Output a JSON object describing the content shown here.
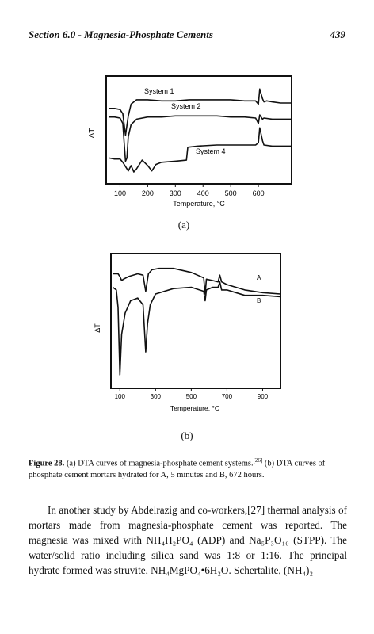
{
  "header": {
    "section": "Section 6.0 - Magnesia-Phosphate Cements",
    "page_number": "439"
  },
  "figures": {
    "a": {
      "sublabel": "(a)",
      "ylabel": "ΔT",
      "xlabel": "Temperature, °C",
      "xticks": [
        "100",
        "200",
        "300",
        "400",
        "500",
        "600"
      ],
      "series_labels": [
        "System 1",
        "System 2",
        "System 4"
      ]
    },
    "b": {
      "sublabel": "(b)",
      "ylabel": "ΔT",
      "xlabel": "Temperature, °C",
      "xticks": [
        "100",
        "300",
        "500",
        "700",
        "900"
      ],
      "series_labels": [
        "A",
        "B"
      ]
    }
  },
  "caption": {
    "label": "Figure 28.",
    "text_1": "(a) DTA curves of magnesia-phosphate cement systems.",
    "ref_1": "[26]",
    "text_2": "(b) DTA curves of phosphate cement mortars hydrated for A, 5 minutes and B, 672 hours."
  },
  "body": {
    "paragraph": "In another study by Abdelrazig and co-workers,[27] thermal analysis of mortars made from magnesia-phosphate cement was reported. The magnesia was mixed with NH₄H₂PO₄ (ADP) and Na₅P₃O₁₀ (STPP). The water/solid ratio including silica sand was 1:8 or 1:16. The principal hydrate formed was struvite, NH₄MgPO₄•6H₂O. Schertalite, (NH₄)₂"
  },
  "chart_data": [
    {
      "type": "line",
      "title": "",
      "xlabel": "Temperature, °C",
      "ylabel": "ΔT",
      "xlim": [
        50,
        720
      ],
      "grid": false,
      "series": [
        {
          "name": "System 1",
          "x": [
            60,
            80,
            100,
            110,
            120,
            130,
            140,
            160,
            200,
            250,
            300,
            350,
            400,
            450,
            500,
            550,
            590,
            600,
            605,
            615,
            620,
            630,
            650,
            680,
            720
          ],
          "y": [
            7.0,
            7.0,
            6.9,
            6.5,
            4.5,
            6.3,
            7.4,
            7.8,
            7.8,
            7.7,
            7.7,
            7.8,
            7.8,
            7.8,
            7.8,
            7.7,
            7.7,
            7.4,
            8.8,
            7.9,
            7.6,
            7.7,
            7.6,
            7.5,
            7.5
          ]
        },
        {
          "name": "System 2",
          "x": [
            60,
            80,
            100,
            110,
            115,
            120,
            125,
            130,
            140,
            160,
            200,
            250,
            300,
            350,
            400,
            450,
            500,
            550,
            590,
            600,
            605,
            615,
            620,
            650,
            720
          ],
          "y": [
            6.2,
            6.2,
            6.1,
            5.6,
            3.8,
            2.1,
            2.4,
            4.4,
            5.5,
            6.0,
            6.2,
            6.2,
            6.3,
            6.3,
            6.3,
            6.3,
            6.2,
            6.2,
            6.1,
            5.6,
            6.4,
            6.0,
            6.1,
            6.0,
            6.0
          ]
        },
        {
          "name": "System 4",
          "x": [
            60,
            80,
            100,
            110,
            120,
            130,
            140,
            150,
            160,
            180,
            200,
            215,
            230,
            250,
            300,
            340,
            345,
            380,
            450,
            500,
            550,
            590,
            600,
            605,
            615,
            620,
            650,
            720
          ],
          "y": [
            2.4,
            2.3,
            2.3,
            2.0,
            1.6,
            1.2,
            1.7,
            1.1,
            1.4,
            2.2,
            1.7,
            1.2,
            1.8,
            2.0,
            2.1,
            2.2,
            3.4,
            3.5,
            3.6,
            3.6,
            3.6,
            3.6,
            3.8,
            5.2,
            4.0,
            3.6,
            3.5,
            3.5
          ]
        }
      ]
    },
    {
      "type": "line",
      "title": "",
      "xlabel": "Temperature, °C",
      "ylabel": "ΔT",
      "xlim": [
        50,
        1000
      ],
      "grid": false,
      "series": [
        {
          "name": "A",
          "x": [
            60,
            90,
            100,
            110,
            120,
            150,
            200,
            230,
            245,
            260,
            280,
            320,
            400,
            500,
            570,
            578,
            585,
            620,
            650,
            660,
            670,
            700,
            750,
            800,
            900,
            1000
          ],
          "y": [
            8.5,
            8.5,
            8.3,
            8.0,
            8.1,
            8.3,
            8.5,
            8.4,
            7.2,
            8.5,
            8.8,
            8.9,
            8.9,
            8.6,
            8.2,
            7.0,
            8.1,
            8.0,
            7.9,
            8.4,
            7.9,
            7.7,
            7.5,
            7.3,
            7.1,
            7.0
          ]
        },
        {
          "name": "B",
          "x": [
            60,
            80,
            90,
            100,
            110,
            130,
            160,
            200,
            230,
            245,
            255,
            270,
            300,
            400,
            500,
            570,
            578,
            585,
            620,
            650,
            660,
            670,
            700,
            750,
            800,
            900,
            1000
          ],
          "y": [
            7.5,
            7.3,
            6.0,
            1.0,
            4.0,
            5.6,
            6.5,
            6.7,
            6.2,
            2.7,
            4.8,
            6.2,
            7.0,
            7.4,
            7.5,
            7.2,
            6.5,
            7.3,
            7.5,
            7.5,
            7.9,
            7.3,
            7.3,
            7.1,
            6.9,
            6.9,
            6.8
          ]
        }
      ]
    }
  ]
}
